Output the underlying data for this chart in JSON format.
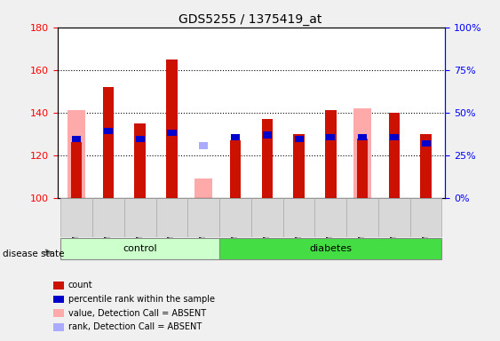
{
  "title": "GDS5255 / 1375419_at",
  "samples": [
    "GSM399092",
    "GSM399093",
    "GSM399096",
    "GSM399098",
    "GSM399099",
    "GSM399102",
    "GSM399104",
    "GSM399109",
    "GSM399112",
    "GSM399114",
    "GSM399115",
    "GSM399116"
  ],
  "n_control": 5,
  "n_diabetes": 7,
  "ylim_left": [
    100,
    180
  ],
  "ylim_right": [
    0,
    100
  ],
  "yticks_left": [
    100,
    120,
    140,
    160,
    180
  ],
  "yticks_right": [
    0,
    25,
    50,
    75,
    100
  ],
  "ytick_labels_right": [
    "0%",
    "25%",
    "50%",
    "75%",
    "100%"
  ],
  "red_count": [
    126,
    152,
    135,
    165,
    100,
    127,
    137,
    130,
    141,
    128,
    140,
    130
  ],
  "blue_percentile": [
    126,
    130,
    126,
    129,
    0,
    127,
    128,
    126,
    127,
    127,
    127,
    124
  ],
  "blue_percentile_height": [
    3,
    3,
    3,
    3,
    0,
    3,
    3,
    3,
    3,
    3,
    3,
    3
  ],
  "pink_absent_value": [
    141,
    0,
    0,
    0,
    109,
    0,
    0,
    0,
    0,
    142,
    0,
    0
  ],
  "light_blue_absent_rank": [
    126,
    0,
    0,
    0,
    123,
    0,
    0,
    0,
    0,
    127,
    0,
    0
  ],
  "light_blue_height": [
    3,
    0,
    0,
    0,
    3,
    0,
    0,
    0,
    0,
    3,
    0,
    0
  ],
  "red_color": "#cc1100",
  "blue_color": "#0000cc",
  "pink_color": "#ffaaaa",
  "light_blue_color": "#aaaaff",
  "background_color": "#f0f0f0",
  "plot_bg": "#ffffff",
  "control_bg": "#ccffcc",
  "diabetes_bg": "#44dd44",
  "base_value": 100,
  "legend_items": [
    "count",
    "percentile rank within the sample",
    "value, Detection Call = ABSENT",
    "rank, Detection Call = ABSENT"
  ],
  "legend_colors": [
    "#cc1100",
    "#0000cc",
    "#ffaaaa",
    "#aaaaff"
  ]
}
